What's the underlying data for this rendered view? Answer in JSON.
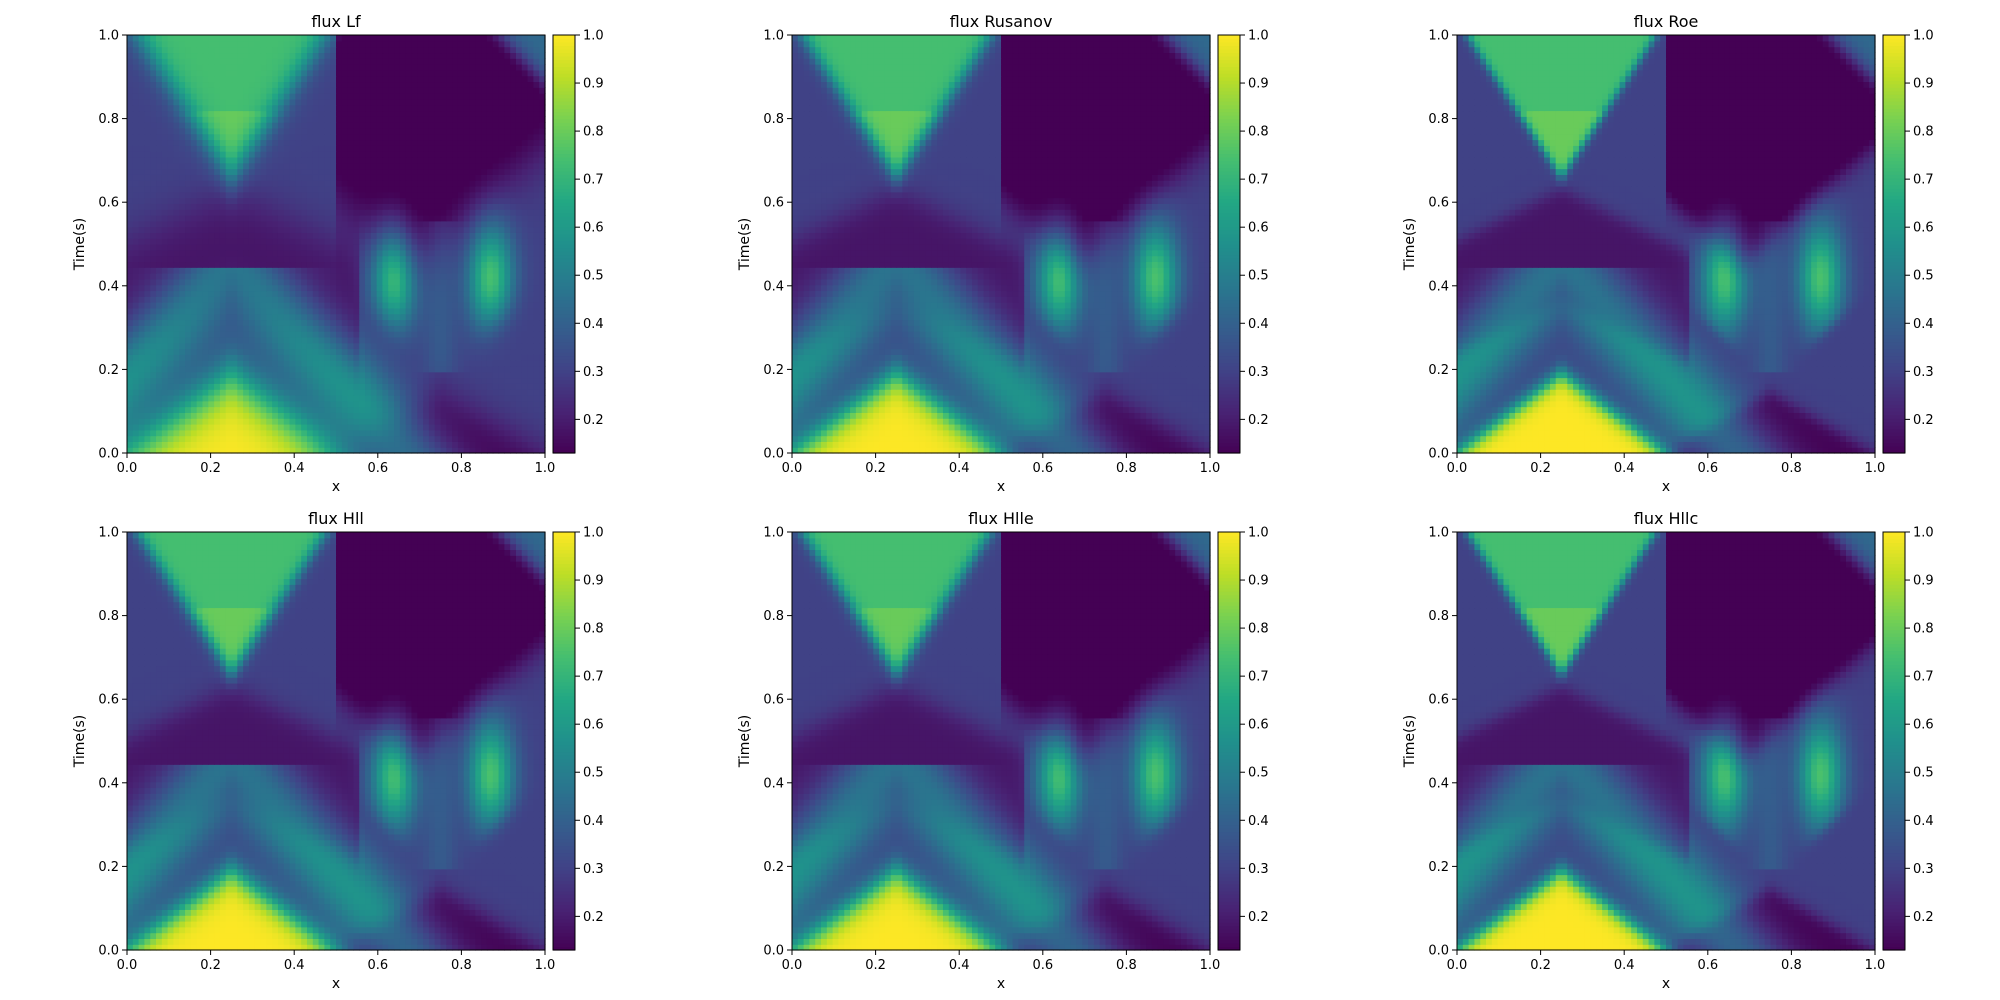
{
  "chart_data": [
    {
      "type": "heatmap",
      "title": "flux Lf",
      "xlabel": "x",
      "ylabel": "Time(s)",
      "xlim": [
        0,
        1
      ],
      "ylim": [
        0,
        1
      ],
      "xticks": [
        "0.0",
        "0.2",
        "0.4",
        "0.6",
        "0.8",
        "1.0"
      ],
      "yticks": [
        "0.0",
        "0.2",
        "0.4",
        "0.6",
        "0.8",
        "1.0"
      ],
      "colorbar": {
        "range": [
          0.13,
          1.0
        ],
        "ticks": [
          "0.2",
          "0.3",
          "0.4",
          "0.5",
          "0.6",
          "0.7",
          "0.8",
          "0.9",
          "1.0"
        ]
      },
      "colormap": "viridis",
      "sharpness": 0.0
    },
    {
      "type": "heatmap",
      "title": "flux Rusanov",
      "xlabel": "x",
      "ylabel": "Time(s)",
      "xlim": [
        0,
        1
      ],
      "ylim": [
        0,
        1
      ],
      "xticks": [
        "0.0",
        "0.2",
        "0.4",
        "0.6",
        "0.8",
        "1.0"
      ],
      "yticks": [
        "0.0",
        "0.2",
        "0.4",
        "0.6",
        "0.8",
        "1.0"
      ],
      "colorbar": {
        "range": [
          0.13,
          1.0
        ],
        "ticks": [
          "0.2",
          "0.3",
          "0.4",
          "0.5",
          "0.6",
          "0.7",
          "0.8",
          "0.9",
          "1.0"
        ]
      },
      "colormap": "viridis",
      "sharpness": 0.6
    },
    {
      "type": "heatmap",
      "title": "flux Roe",
      "xlabel": "x",
      "ylabel": "Time(s)",
      "xlim": [
        0,
        1
      ],
      "ylim": [
        0,
        1
      ],
      "xticks": [
        "0.0",
        "0.2",
        "0.4",
        "0.6",
        "0.8",
        "1.0"
      ],
      "yticks": [
        "0.0",
        "0.2",
        "0.4",
        "0.6",
        "0.8",
        "1.0"
      ],
      "colorbar": {
        "range": [
          0.13,
          1.0
        ],
        "ticks": [
          "0.2",
          "0.3",
          "0.4",
          "0.5",
          "0.6",
          "0.7",
          "0.8",
          "0.9",
          "1.0"
        ]
      },
      "colormap": "viridis",
      "sharpness": 1.0
    },
    {
      "type": "heatmap",
      "title": "flux Hll",
      "xlabel": "x",
      "ylabel": "Time(s)",
      "xlim": [
        0,
        1
      ],
      "ylim": [
        0,
        1
      ],
      "xticks": [
        "0.0",
        "0.2",
        "0.4",
        "0.6",
        "0.8",
        "1.0"
      ],
      "yticks": [
        "0.0",
        "0.2",
        "0.4",
        "0.6",
        "0.8",
        "1.0"
      ],
      "colorbar": {
        "range": [
          0.13,
          1.0
        ],
        "ticks": [
          "0.2",
          "0.3",
          "0.4",
          "0.5",
          "0.6",
          "0.7",
          "0.8",
          "0.9",
          "1.0"
        ]
      },
      "colormap": "viridis",
      "sharpness": 0.7
    },
    {
      "type": "heatmap",
      "title": "flux Hlle",
      "xlabel": "x",
      "ylabel": "Time(s)",
      "xlim": [
        0,
        1
      ],
      "ylim": [
        0,
        1
      ],
      "xticks": [
        "0.0",
        "0.2",
        "0.4",
        "0.6",
        "0.8",
        "1.0"
      ],
      "yticks": [
        "0.0",
        "0.2",
        "0.4",
        "0.6",
        "0.8",
        "1.0"
      ],
      "colorbar": {
        "range": [
          0.13,
          1.0
        ],
        "ticks": [
          "0.2",
          "0.3",
          "0.4",
          "0.5",
          "0.6",
          "0.7",
          "0.8",
          "0.9",
          "1.0"
        ]
      },
      "colormap": "viridis",
      "sharpness": 0.7
    },
    {
      "type": "heatmap",
      "title": "flux Hllc",
      "xlabel": "x",
      "ylabel": "Time(s)",
      "xlim": [
        0,
        1
      ],
      "ylim": [
        0,
        1
      ],
      "xticks": [
        "0.0",
        "0.2",
        "0.4",
        "0.6",
        "0.8",
        "1.0"
      ],
      "yticks": [
        "0.0",
        "0.2",
        "0.4",
        "0.6",
        "0.8",
        "1.0"
      ],
      "colorbar": {
        "range": [
          0.13,
          1.0
        ],
        "ticks": [
          "0.2",
          "0.3",
          "0.4",
          "0.5",
          "0.6",
          "0.7",
          "0.8",
          "0.9",
          "1.0"
        ]
      },
      "colormap": "viridis",
      "sharpness": 1.0
    }
  ]
}
